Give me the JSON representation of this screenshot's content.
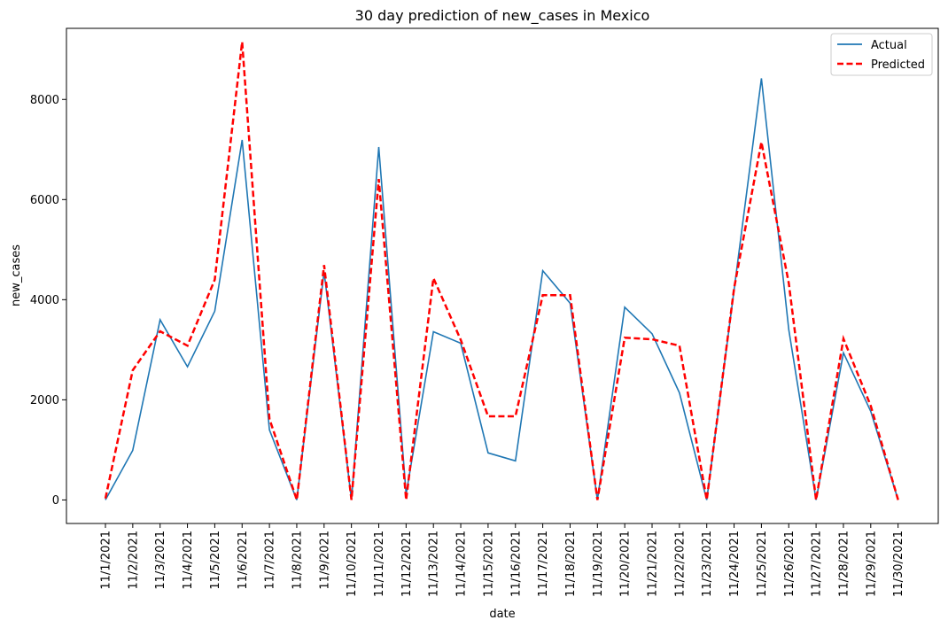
{
  "chart_data": {
    "type": "line",
    "title": "30 day prediction of new_cases in Mexico",
    "xlabel": "date",
    "ylabel": "new_cases",
    "ylim": [
      -470,
      9420
    ],
    "yticks": [
      0,
      2000,
      4000,
      6000,
      8000
    ],
    "grid": false,
    "legend_position": "top-right",
    "categories": [
      "11/1/2021",
      "11/2/2021",
      "11/3/2021",
      "11/4/2021",
      "11/5/2021",
      "11/6/2021",
      "11/7/2021",
      "11/8/2021",
      "11/9/2021",
      "11/10/2021",
      "11/11/2021",
      "11/12/2021",
      "11/13/2021",
      "11/14/2021",
      "11/15/2021",
      "11/16/2021",
      "11/17/2021",
      "11/18/2021",
      "11/19/2021",
      "11/20/2021",
      "11/21/2021",
      "11/22/2021",
      "11/23/2021",
      "11/24/2021",
      "11/25/2021",
      "11/26/2021",
      "11/27/2021",
      "11/28/2021",
      "11/29/2021",
      "11/30/2021"
    ],
    "series": [
      {
        "name": "Actual",
        "color": "#1f77b4",
        "style": "solid",
        "values": [
          0,
          990,
          3600,
          2660,
          3770,
          7190,
          1400,
          0,
          4560,
          0,
          7050,
          120,
          3360,
          3130,
          940,
          780,
          4580,
          3930,
          0,
          3850,
          3320,
          2140,
          0,
          4200,
          8420,
          3400,
          0,
          2940,
          1770,
          0
        ]
      },
      {
        "name": "Predicted",
        "color": "#ff0000",
        "style": "dashed",
        "values": [
          30,
          2590,
          3370,
          3080,
          4400,
          9150,
          1620,
          0,
          4690,
          0,
          6410,
          0,
          4430,
          3200,
          1670,
          1670,
          4090,
          4090,
          0,
          3240,
          3210,
          3080,
          0,
          4230,
          7150,
          4330,
          0,
          3220,
          1880,
          0
        ]
      }
    ]
  }
}
